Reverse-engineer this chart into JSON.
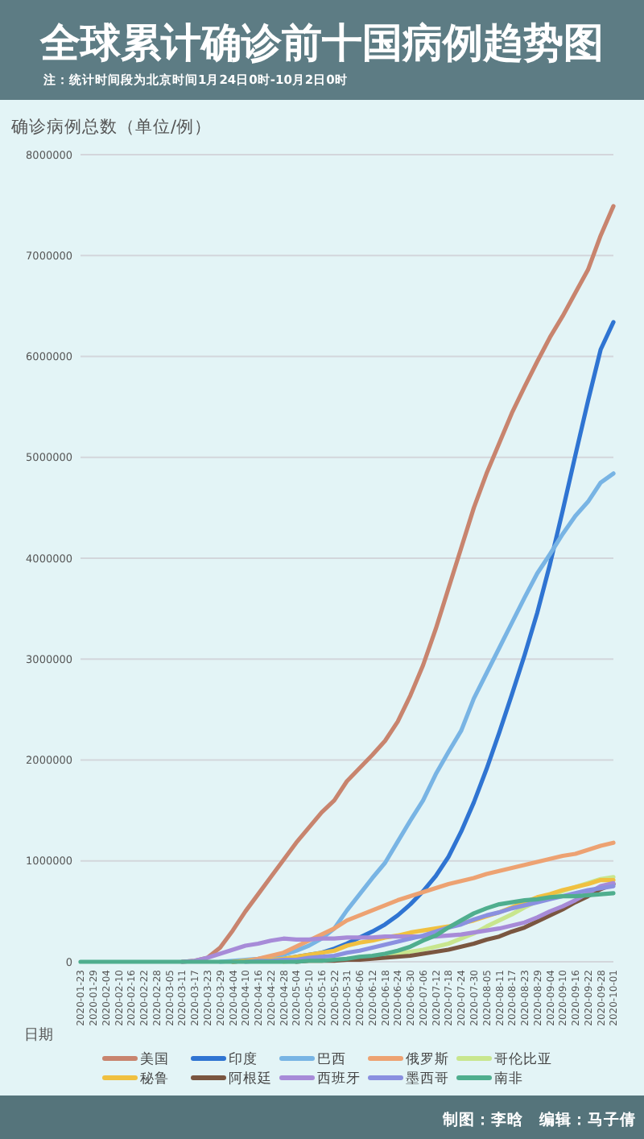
{
  "chart_data": {
    "type": "line",
    "title": "全球累计确诊前十国病例趋势图",
    "subtitle": "注：统计时间段为北京时间1月24日0时-10月2日0时",
    "ylabel": "确诊病例总数（单位/例）",
    "xlabel": "日期",
    "categories": [
      "2020-01-23",
      "2020-01-29",
      "2020-02-04",
      "2020-02-10",
      "2020-02-16",
      "2020-02-22",
      "2020-02-28",
      "2020-03-05",
      "2020-03-11",
      "2020-03-17",
      "2020-03-23",
      "2020-03-29",
      "2020-04-04",
      "2020-04-10",
      "2020-04-16",
      "2020-04-22",
      "2020-04-28",
      "2020-05-04",
      "2020-05-10",
      "2020-05-16",
      "2020-05-22",
      "2020-05-31",
      "2020-06-06",
      "2020-06-12",
      "2020-06-18",
      "2020-06-24",
      "2020-06-30",
      "2020-07-06",
      "2020-07-12",
      "2020-07-18",
      "2020-07-24",
      "2020-07-30",
      "2020-08-05",
      "2020-08-11",
      "2020-08-17",
      "2020-08-23",
      "2020-08-29",
      "2020-09-04",
      "2020-09-10",
      "2020-09-16",
      "2020-09-22",
      "2020-09-28",
      "2020-10-01"
    ],
    "ylim": [
      0,
      8000000
    ],
    "yticks": [
      0,
      1000000,
      2000000,
      3000000,
      4000000,
      5000000,
      6000000,
      7000000,
      8000000
    ],
    "grid": "y",
    "legend": "bottom",
    "series": [
      {
        "name": "美国",
        "color": "#c8846e",
        "values": [
          null,
          null,
          null,
          null,
          null,
          null,
          null,
          null,
          0,
          10000,
          40000,
          140000,
          310000,
          500000,
          670000,
          840000,
          1010000,
          1180000,
          1330000,
          1480000,
          1600000,
          1790000,
          1920000,
          2050000,
          2190000,
          2380000,
          2640000,
          2940000,
          3300000,
          3700000,
          4100000,
          4500000,
          4840000,
          5140000,
          5440000,
          5700000,
          5950000,
          6190000,
          6400000,
          6630000,
          6860000,
          7200000,
          7490000
        ]
      },
      {
        "name": "印度",
        "color": "#2f74d2",
        "values": [
          null,
          null,
          null,
          null,
          null,
          null,
          null,
          null,
          null,
          null,
          null,
          null,
          0,
          10000,
          10000,
          20000,
          30000,
          50000,
          70000,
          90000,
          130000,
          180000,
          240000,
          300000,
          370000,
          460000,
          570000,
          700000,
          850000,
          1040000,
          1290000,
          1580000,
          1910000,
          2270000,
          2650000,
          3040000,
          3460000,
          3940000,
          4470000,
          5020000,
          5560000,
          6070000,
          6340000
        ]
      },
      {
        "name": "巴西",
        "color": "#78b4e4",
        "values": [
          null,
          null,
          null,
          null,
          null,
          null,
          null,
          null,
          null,
          null,
          null,
          0,
          10000,
          20000,
          30000,
          50000,
          70000,
          110000,
          160000,
          230000,
          330000,
          510000,
          670000,
          830000,
          980000,
          1190000,
          1400000,
          1600000,
          1860000,
          2080000,
          2290000,
          2610000,
          2860000,
          3110000,
          3360000,
          3610000,
          3850000,
          4040000,
          4240000,
          4420000,
          4560000,
          4750000,
          4840000
        ]
      },
      {
        "name": "俄罗斯",
        "color": "#eda272",
        "values": [
          null,
          null,
          null,
          null,
          null,
          null,
          null,
          null,
          null,
          null,
          null,
          null,
          0,
          10000,
          30000,
          60000,
          90000,
          150000,
          210000,
          270000,
          330000,
          410000,
          460000,
          510000,
          560000,
          610000,
          650000,
          690000,
          730000,
          770000,
          800000,
          830000,
          870000,
          900000,
          930000,
          960000,
          990000,
          1020000,
          1050000,
          1070000,
          1110000,
          1150000,
          1180000
        ]
      },
      {
        "name": "哥伦比亚",
        "color": "#c8e68e",
        "values": [
          null,
          null,
          null,
          null,
          null,
          null,
          null,
          null,
          null,
          null,
          null,
          null,
          null,
          null,
          null,
          null,
          0,
          10000,
          10000,
          10000,
          20000,
          30000,
          40000,
          50000,
          60000,
          80000,
          100000,
          120000,
          150000,
          180000,
          230000,
          280000,
          350000,
          410000,
          470000,
          540000,
          600000,
          650000,
          700000,
          740000,
          780000,
          820000,
          840000
        ]
      },
      {
        "name": "秘鲁",
        "color": "#f0c040",
        "values": [
          null,
          null,
          null,
          null,
          null,
          null,
          null,
          null,
          null,
          null,
          null,
          null,
          0,
          10000,
          10000,
          20000,
          30000,
          50000,
          70000,
          90000,
          110000,
          160000,
          190000,
          210000,
          240000,
          260000,
          290000,
          310000,
          330000,
          350000,
          380000,
          410000,
          450000,
          490000,
          540000,
          590000,
          640000,
          670000,
          710000,
          740000,
          770000,
          810000,
          810000
        ]
      },
      {
        "name": "阿根廷",
        "color": "#7a5640",
        "values": [
          null,
          null,
          null,
          null,
          null,
          null,
          null,
          null,
          null,
          null,
          null,
          null,
          null,
          null,
          null,
          null,
          null,
          0,
          10000,
          10000,
          10000,
          20000,
          20000,
          30000,
          40000,
          50000,
          60000,
          80000,
          100000,
          120000,
          150000,
          180000,
          220000,
          250000,
          300000,
          340000,
          400000,
          460000,
          520000,
          590000,
          650000,
          720000,
          770000
        ]
      },
      {
        "name": "西班牙",
        "color": "#a78bd8",
        "values": [
          null,
          null,
          null,
          null,
          null,
          null,
          null,
          null,
          0,
          10000,
          40000,
          80000,
          120000,
          160000,
          180000,
          210000,
          230000,
          220000,
          220000,
          230000,
          230000,
          240000,
          240000,
          240000,
          250000,
          250000,
          250000,
          250000,
          250000,
          260000,
          270000,
          290000,
          310000,
          330000,
          360000,
          390000,
          440000,
          500000,
          550000,
          610000,
          680000,
          750000,
          780000
        ]
      },
      {
        "name": "墨西哥",
        "color": "#8a90e0",
        "values": [
          null,
          null,
          null,
          null,
          null,
          null,
          null,
          null,
          null,
          null,
          null,
          null,
          null,
          0,
          10000,
          10000,
          20000,
          20000,
          40000,
          50000,
          60000,
          90000,
          110000,
          140000,
          170000,
          200000,
          230000,
          260000,
          300000,
          340000,
          370000,
          420000,
          460000,
          490000,
          530000,
          560000,
          590000,
          620000,
          650000,
          680000,
          710000,
          730000,
          750000
        ]
      },
      {
        "name": "南非",
        "color": "#4fae8e",
        "values": [
          0,
          0,
          0,
          0,
          0,
          0,
          0,
          0,
          0,
          0,
          0,
          0,
          0,
          0,
          0,
          0,
          0,
          0,
          10000,
          10000,
          20000,
          30000,
          50000,
          60000,
          80000,
          110000,
          150000,
          210000,
          260000,
          340000,
          410000,
          480000,
          530000,
          570000,
          590000,
          610000,
          620000,
          640000,
          650000,
          650000,
          660000,
          670000,
          680000
        ]
      }
    ],
    "annotations": [
      "制图：李晗　编辑：马子倩"
    ]
  }
}
